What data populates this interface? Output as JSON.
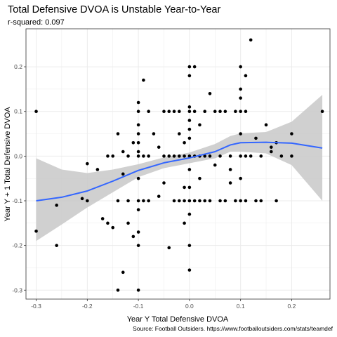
{
  "chart_data": {
    "type": "scatter",
    "title": "Total Defensive DVOA is Unstable Year-to-Year",
    "subtitle": "r-squared: 0.097",
    "xlabel": "Year Y Total Defensive DVOA",
    "ylabel": "Year Y + 1 Total Defensive DVOA",
    "caption": "Source: Football Outsiders. https://www.footballoutsiders.com/stats/teamdef",
    "xlim": [
      -0.32,
      0.275
    ],
    "ylim": [
      -0.32,
      0.285
    ],
    "x_ticks": [
      -0.3,
      -0.2,
      -0.1,
      0.0,
      0.1,
      0.2
    ],
    "y_ticks": [
      -0.3,
      -0.2,
      -0.1,
      0.0,
      0.1,
      0.2
    ],
    "x_tick_labels": [
      "-0.3",
      "-0.2",
      "-0.1",
      "0.0",
      "0.1",
      "0.2"
    ],
    "y_tick_labels": [
      "-0.3",
      "-0.2",
      "-0.1",
      "0.0",
      "0.1",
      "0.2"
    ],
    "grid": true,
    "colors": {
      "points": "#000000",
      "smooth_line": "#3366ff",
      "confidence_band": "#c8c8c8",
      "grid": "#ebebeb",
      "panel_border": "#333333"
    },
    "points": [
      [
        -0.3,
        0.1
      ],
      [
        -0.3,
        -0.168
      ],
      [
        -0.26,
        -0.11
      ],
      [
        -0.26,
        -0.2
      ],
      [
        -0.2,
        -0.017
      ],
      [
        -0.2,
        -0.1
      ],
      [
        -0.21,
        -0.095
      ],
      [
        -0.18,
        -0.03
      ],
      [
        -0.17,
        -0.14
      ],
      [
        -0.16,
        -0.15
      ],
      [
        -0.16,
        0.0
      ],
      [
        -0.15,
        0.0
      ],
      [
        -0.15,
        -0.16
      ],
      [
        -0.14,
        -0.1
      ],
      [
        -0.14,
        0.05
      ],
      [
        -0.14,
        -0.3
      ],
      [
        -0.13,
        -0.26
      ],
      [
        -0.13,
        0.01
      ],
      [
        -0.13,
        -0.04
      ],
      [
        -0.12,
        0.0
      ],
      [
        -0.12,
        -0.1
      ],
      [
        -0.12,
        -0.15
      ],
      [
        -0.11,
        -0.18
      ],
      [
        -0.11,
        0.03
      ],
      [
        -0.1,
        0.12
      ],
      [
        -0.1,
        0.1
      ],
      [
        -0.1,
        0.07
      ],
      [
        -0.1,
        0.05
      ],
      [
        -0.1,
        0.03
      ],
      [
        -0.1,
        0.01
      ],
      [
        -0.1,
        0.0
      ],
      [
        -0.1,
        -0.05
      ],
      [
        -0.1,
        -0.1
      ],
      [
        -0.1,
        -0.12
      ],
      [
        -0.1,
        -0.2
      ],
      [
        -0.1,
        -0.3
      ],
      [
        -0.1,
        -0.17
      ],
      [
        -0.09,
        0.17
      ],
      [
        -0.09,
        0.0
      ],
      [
        -0.09,
        -0.1
      ],
      [
        -0.08,
        0.1
      ],
      [
        -0.08,
        0.0
      ],
      [
        -0.08,
        -0.1
      ],
      [
        -0.07,
        0.05
      ],
      [
        -0.06,
        0.02
      ],
      [
        -0.06,
        -0.09
      ],
      [
        -0.05,
        0.0
      ],
      [
        -0.05,
        0.1
      ],
      [
        -0.05,
        -0.06
      ],
      [
        -0.04,
        0.0
      ],
      [
        -0.04,
        0.1
      ],
      [
        -0.04,
        -0.205
      ],
      [
        -0.03,
        0.1
      ],
      [
        -0.03,
        0.0
      ],
      [
        -0.03,
        -0.1
      ],
      [
        -0.02,
        0.05
      ],
      [
        -0.02,
        0.1
      ],
      [
        -0.02,
        0.0
      ],
      [
        -0.02,
        -0.1
      ],
      [
        -0.01,
        -0.1
      ],
      [
        -0.01,
        0.03
      ],
      [
        -0.01,
        -0.15
      ],
      [
        -0.01,
        0.0
      ],
      [
        -0.01,
        -0.07
      ],
      [
        0.0,
        0.2
      ],
      [
        0.0,
        0.18
      ],
      [
        0.0,
        0.11
      ],
      [
        0.0,
        0.1
      ],
      [
        0.0,
        0.08
      ],
      [
        0.0,
        0.06
      ],
      [
        0.0,
        0.04
      ],
      [
        0.0,
        0.0
      ],
      [
        0.0,
        -0.03
      ],
      [
        0.0,
        -0.07
      ],
      [
        0.0,
        -0.1
      ],
      [
        0.0,
        -0.13
      ],
      [
        0.0,
        -0.2
      ],
      [
        0.0,
        -0.255
      ],
      [
        0.01,
        0.2
      ],
      [
        0.01,
        0.1
      ],
      [
        0.01,
        0.0
      ],
      [
        0.01,
        -0.1
      ],
      [
        0.02,
        0.07
      ],
      [
        0.02,
        0.0
      ],
      [
        0.02,
        -0.05
      ],
      [
        0.02,
        -0.1
      ],
      [
        0.03,
        0.1
      ],
      [
        0.03,
        0.0
      ],
      [
        0.03,
        -0.1
      ],
      [
        0.04,
        0.14
      ],
      [
        0.04,
        0.0
      ],
      [
        0.04,
        -0.1
      ],
      [
        0.05,
        0.1
      ],
      [
        0.05,
        -0.02
      ],
      [
        0.06,
        0.1
      ],
      [
        0.06,
        0.0
      ],
      [
        0.06,
        -0.1
      ],
      [
        0.07,
        0.1
      ],
      [
        0.07,
        -0.1
      ],
      [
        0.08,
        0.0
      ],
      [
        0.08,
        -0.03
      ],
      [
        0.08,
        -0.06
      ],
      [
        0.09,
        0.1
      ],
      [
        0.09,
        -0.1
      ],
      [
        0.1,
        0.2
      ],
      [
        0.1,
        0.15
      ],
      [
        0.1,
        0.13
      ],
      [
        0.1,
        0.1
      ],
      [
        0.1,
        0.05
      ],
      [
        0.1,
        0.0
      ],
      [
        0.1,
        -0.05
      ],
      [
        0.1,
        -0.1
      ],
      [
        0.11,
        0.18
      ],
      [
        0.11,
        0.1
      ],
      [
        0.11,
        0.0
      ],
      [
        0.11,
        -0.1
      ],
      [
        0.12,
        0.0
      ],
      [
        0.12,
        0.26
      ],
      [
        0.13,
        0.04
      ],
      [
        0.13,
        -0.1
      ],
      [
        0.14,
        0.0
      ],
      [
        0.14,
        -0.1
      ],
      [
        0.15,
        0.07
      ],
      [
        0.16,
        0.02
      ],
      [
        0.16,
        0.01
      ],
      [
        0.17,
        0.03
      ],
      [
        0.17,
        -0.1
      ],
      [
        0.18,
        0.0
      ],
      [
        0.2,
        0.05
      ],
      [
        0.2,
        0.0
      ],
      [
        0.26,
        0.1
      ]
    ],
    "smooth_fit": [
      [
        -0.3,
        -0.1
      ],
      [
        -0.25,
        -0.092
      ],
      [
        -0.2,
        -0.078
      ],
      [
        -0.15,
        -0.056
      ],
      [
        -0.1,
        -0.032
      ],
      [
        -0.05,
        -0.015
      ],
      [
        0.0,
        -0.004
      ],
      [
        0.05,
        0.01
      ],
      [
        0.08,
        0.025
      ],
      [
        0.1,
        0.03
      ],
      [
        0.15,
        0.031
      ],
      [
        0.2,
        0.029
      ],
      [
        0.26,
        0.018
      ]
    ],
    "confidence_band": {
      "x": [
        -0.3,
        -0.25,
        -0.2,
        -0.15,
        -0.1,
        -0.05,
        0.0,
        0.05,
        0.08,
        0.1,
        0.15,
        0.2,
        0.26
      ],
      "upper": [
        -0.005,
        -0.03,
        -0.038,
        -0.03,
        -0.018,
        -0.003,
        0.008,
        0.027,
        0.045,
        0.051,
        0.054,
        0.077,
        0.137
      ],
      "lower": [
        -0.19,
        -0.153,
        -0.115,
        -0.081,
        -0.047,
        -0.027,
        -0.016,
        -0.005,
        0.01,
        0.01,
        0.006,
        -0.02,
        -0.1
      ]
    }
  }
}
